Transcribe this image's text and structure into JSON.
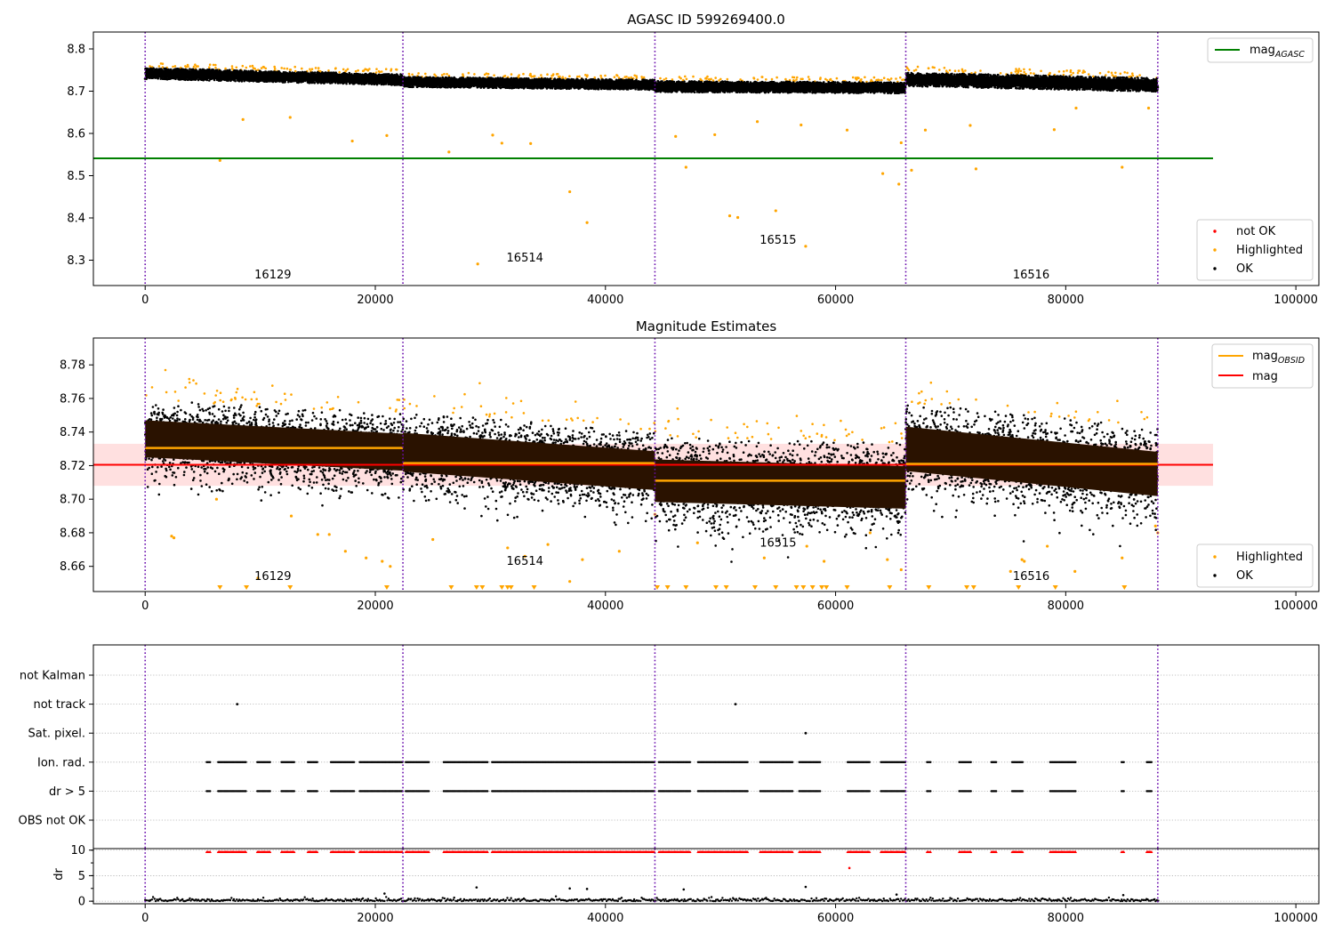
{
  "chart_data": [
    {
      "type": "scatter",
      "title": "AGASC ID 599269400.0",
      "xlabel": "",
      "ylabel": "",
      "xlim": [
        -4500,
        102000
      ],
      "ylim": [
        8.24,
        8.84
      ],
      "xticks": [
        0,
        20000,
        40000,
        60000,
        80000,
        100000
      ],
      "xtick_labels": [
        "0",
        "20000",
        "40000",
        "60000",
        "80000",
        "100000"
      ],
      "yticks": [
        8.3,
        8.4,
        8.5,
        8.6,
        8.7,
        8.8
      ],
      "ytick_labels": [
        "8.3",
        "8.4",
        "8.5",
        "8.6",
        "8.7",
        "8.8"
      ],
      "grid": false,
      "obs_boundaries": [
        0,
        22400,
        44300,
        66100,
        88000
      ],
      "obs_labels": [
        {
          "text": "16129",
          "x": 11100,
          "y": 8.265
        },
        {
          "text": "16514",
          "x": 33000,
          "y": 8.305
        },
        {
          "text": "16515",
          "x": 55000,
          "y": 8.347
        },
        {
          "text": "16516",
          "x": 77000,
          "y": 8.265
        }
      ],
      "lines": [
        {
          "name": "mag_AGASC",
          "y": 8.541,
          "x": [
            -4500,
            92800
          ],
          "color": "#008000"
        }
      ],
      "ok_band": [
        {
          "x": [
            0,
            22400
          ],
          "center": [
            8.742,
            8.727
          ],
          "halfwidth": 0.013
        },
        {
          "x": [
            22400,
            44300
          ],
          "center": [
            8.722,
            8.715
          ],
          "halfwidth": 0.012
        },
        {
          "x": [
            44300,
            66100
          ],
          "center": [
            8.711,
            8.708
          ],
          "halfwidth": 0.013
        },
        {
          "x": [
            66100,
            88000
          ],
          "center": [
            8.728,
            8.715
          ],
          "halfwidth": 0.016
        }
      ],
      "highlighted_outliers": [
        [
          6500,
          8.536
        ],
        [
          8500,
          8.633
        ],
        [
          12600,
          8.638
        ],
        [
          18000,
          8.582
        ],
        [
          21000,
          8.595
        ],
        [
          26400,
          8.556
        ],
        [
          28900,
          8.291
        ],
        [
          30200,
          8.596
        ],
        [
          31000,
          8.577
        ],
        [
          33500,
          8.576
        ],
        [
          36900,
          8.462
        ],
        [
          38400,
          8.389
        ],
        [
          46100,
          8.593
        ],
        [
          47000,
          8.52
        ],
        [
          49500,
          8.597
        ],
        [
          50800,
          8.405
        ],
        [
          51500,
          8.401
        ],
        [
          53200,
          8.628
        ],
        [
          54800,
          8.417
        ],
        [
          57400,
          8.333
        ],
        [
          57000,
          8.62
        ],
        [
          61000,
          8.608
        ],
        [
          64100,
          8.505
        ],
        [
          65500,
          8.48
        ],
        [
          65700,
          8.578
        ],
        [
          66600,
          8.513
        ],
        [
          67800,
          8.608
        ],
        [
          71700,
          8.619
        ],
        [
          72200,
          8.516
        ],
        [
          79000,
          8.609
        ],
        [
          80900,
          8.66
        ],
        [
          84900,
          8.52
        ],
        [
          87200,
          8.66
        ]
      ],
      "legend_top": {
        "position": "upper-right",
        "entries": [
          {
            "name": "mag",
            "sub": "AGASC",
            "color": "#008000"
          }
        ]
      },
      "legend_bottom": {
        "position": "lower-right",
        "entries": [
          {
            "name": "not OK",
            "color": "#ff0000"
          },
          {
            "name": "Highlighted",
            "color": "#ffa500"
          },
          {
            "name": "OK",
            "color": "#000000"
          }
        ]
      }
    },
    {
      "type": "scatter",
      "title": "Magnitude Estimates",
      "xlabel": "",
      "ylabel": "",
      "xlim": [
        -4500,
        102000
      ],
      "ylim": [
        8.645,
        8.796
      ],
      "xticks": [
        0,
        20000,
        40000,
        60000,
        80000,
        100000
      ],
      "xtick_labels": [
        "0",
        "20000",
        "40000",
        "60000",
        "80000",
        "100000"
      ],
      "yticks": [
        8.66,
        8.68,
        8.7,
        8.72,
        8.74,
        8.76,
        8.78
      ],
      "ytick_labels": [
        "8.66",
        "8.68",
        "8.70",
        "8.72",
        "8.74",
        "8.76",
        "8.78"
      ],
      "grid": false,
      "obs_boundaries": [
        0,
        22400,
        44300,
        66100,
        88000
      ],
      "obs_labels": [
        {
          "text": "16129",
          "x": 11100,
          "y": 8.654
        },
        {
          "text": "16514",
          "x": 33000,
          "y": 8.663
        },
        {
          "text": "16515",
          "x": 55000,
          "y": 8.674
        },
        {
          "text": "16516",
          "x": 77000,
          "y": 8.654
        }
      ],
      "mag": {
        "y": 8.7205,
        "band": [
          8.708,
          8.733
        ],
        "x": [
          -4500,
          92800
        ],
        "color": "#ff0000",
        "band_color": "#ffe0e0"
      },
      "mag_obsid": [
        {
          "x": [
            0,
            22400
          ],
          "y": 8.7305
        },
        {
          "x": [
            22400,
            44300
          ],
          "y": 8.7215
        },
        {
          "x": [
            44300,
            66100
          ],
          "y": 8.711
        },
        {
          "x": [
            66100,
            88000
          ],
          "y": 8.721
        }
      ],
      "ok_band": [
        {
          "x": [
            0,
            22400
          ],
          "center": [
            8.736,
            8.728
          ],
          "halfwidth": 0.02
        },
        {
          "x": [
            22400,
            44300
          ],
          "center": [
            8.728,
            8.717
          ],
          "halfwidth": 0.021
        },
        {
          "x": [
            44300,
            66100
          ],
          "center": [
            8.711,
            8.707
          ],
          "halfwidth": 0.023
        },
        {
          "x": [
            66100,
            88000
          ],
          "center": [
            8.73,
            8.715
          ],
          "halfwidth": 0.024
        }
      ],
      "highlighted_outliers": [
        [
          2300,
          8.678
        ],
        [
          2500,
          8.677
        ],
        [
          6200,
          8.7
        ],
        [
          9800,
          8.653
        ],
        [
          12700,
          8.69
        ],
        [
          15000,
          8.679
        ],
        [
          16000,
          8.679
        ],
        [
          17400,
          8.669
        ],
        [
          19200,
          8.665
        ],
        [
          20600,
          8.663
        ],
        [
          21300,
          8.66
        ],
        [
          25000,
          8.676
        ],
        [
          31500,
          8.671
        ],
        [
          33000,
          8.666
        ],
        [
          35000,
          8.673
        ],
        [
          36900,
          8.651
        ],
        [
          38000,
          8.664
        ],
        [
          41200,
          8.669
        ],
        [
          44300,
          8.691
        ],
        [
          48000,
          8.674
        ],
        [
          53800,
          8.665
        ],
        [
          57500,
          8.672
        ],
        [
          59000,
          8.663
        ],
        [
          63000,
          8.68
        ],
        [
          64500,
          8.664
        ],
        [
          65700,
          8.658
        ],
        [
          75200,
          8.657
        ],
        [
          76200,
          8.664
        ],
        [
          76400,
          8.663
        ],
        [
          78400,
          8.672
        ],
        [
          80800,
          8.657
        ],
        [
          84900,
          8.665
        ],
        [
          87800,
          8.684
        ],
        [
          88000,
          8.68
        ]
      ],
      "offscale_markers_x": [
        6500,
        8800,
        12600,
        21000,
        26600,
        28800,
        29300,
        31000,
        31500,
        31800,
        33800,
        44500,
        45400,
        47000,
        49600,
        50500,
        53000,
        54800,
        56600,
        57200,
        58000,
        58800,
        59200,
        61000,
        64700,
        68100,
        71400,
        72000,
        75900,
        79100,
        85100
      ],
      "legend_top": {
        "position": "upper-right",
        "entries": [
          {
            "name": "mag",
            "sub": "OBSID",
            "color": "#ffa500"
          },
          {
            "name": "mag",
            "sub": "",
            "color": "#ff0000"
          }
        ]
      },
      "legend_bottom": {
        "position": "lower-right",
        "entries": [
          {
            "name": "Highlighted",
            "color": "#ffa500"
          },
          {
            "name": "OK",
            "color": "#000000"
          }
        ]
      }
    },
    {
      "type": "scatter",
      "title": "",
      "xlabel": "",
      "ylabel": "",
      "xlim": [
        -4500,
        102000
      ],
      "categories": [
        "not Kalman",
        "not track",
        "Sat. pixel.",
        "Ion. rad.",
        "dr > 5",
        "OBS not OK"
      ],
      "grid": true,
      "obs_boundaries": [
        0,
        22400,
        44300,
        66100,
        88000
      ],
      "flag_points": {
        "not Kalman": [],
        "not track": [
          8000,
          51300
        ],
        "Sat. pixel.": [
          57400
        ],
        "Ion. rad.": "clustered",
        "dr > 5": "clustered",
        "OBS not OK": []
      }
    },
    {
      "type": "scatter",
      "title": "",
      "xlabel": "",
      "ylabel": "dr",
      "xlim": [
        -4500,
        102000
      ],
      "ylim": [
        -0.5,
        10.3
      ],
      "xticks": [
        0,
        20000,
        40000,
        60000,
        80000,
        100000
      ],
      "xtick_labels": [
        "0",
        "20000",
        "40000",
        "60000",
        "80000",
        "100000"
      ],
      "yticks": [
        0,
        5,
        10
      ],
      "ytick_labels": [
        "0",
        "5",
        "10"
      ],
      "grid": true,
      "obs_boundaries": [
        0,
        22400,
        44300,
        66100,
        88000
      ],
      "isolated_points": [
        [
          28800,
          2.7
        ],
        [
          36900,
          2.5
        ],
        [
          38400,
          2.4
        ],
        [
          46800,
          2.3
        ],
        [
          57400,
          2.8
        ],
        [
          61200,
          6.5
        ],
        [
          20800,
          1.5
        ],
        [
          65300,
          1.3
        ],
        [
          85000,
          1.2
        ]
      ]
    }
  ],
  "flag_clusters": [
    [
      5300,
      5700
    ],
    [
      6300,
      8800
    ],
    [
      9700,
      10900
    ],
    [
      11800,
      13000
    ],
    [
      14100,
      15000
    ],
    [
      16100,
      18200
    ],
    [
      18600,
      22400
    ],
    [
      22600,
      24700
    ],
    [
      25900,
      29800
    ],
    [
      30100,
      44300
    ],
    [
      44600,
      47400
    ],
    [
      48000,
      52400
    ],
    [
      53400,
      56300
    ],
    [
      56800,
      58700
    ],
    [
      61000,
      63000
    ],
    [
      63900,
      66100
    ],
    [
      67900,
      68300
    ],
    [
      70700,
      71800
    ],
    [
      73500,
      74000
    ],
    [
      75300,
      76300
    ],
    [
      78600,
      80900
    ],
    [
      84800,
      85100
    ],
    [
      87000,
      87500
    ]
  ]
}
